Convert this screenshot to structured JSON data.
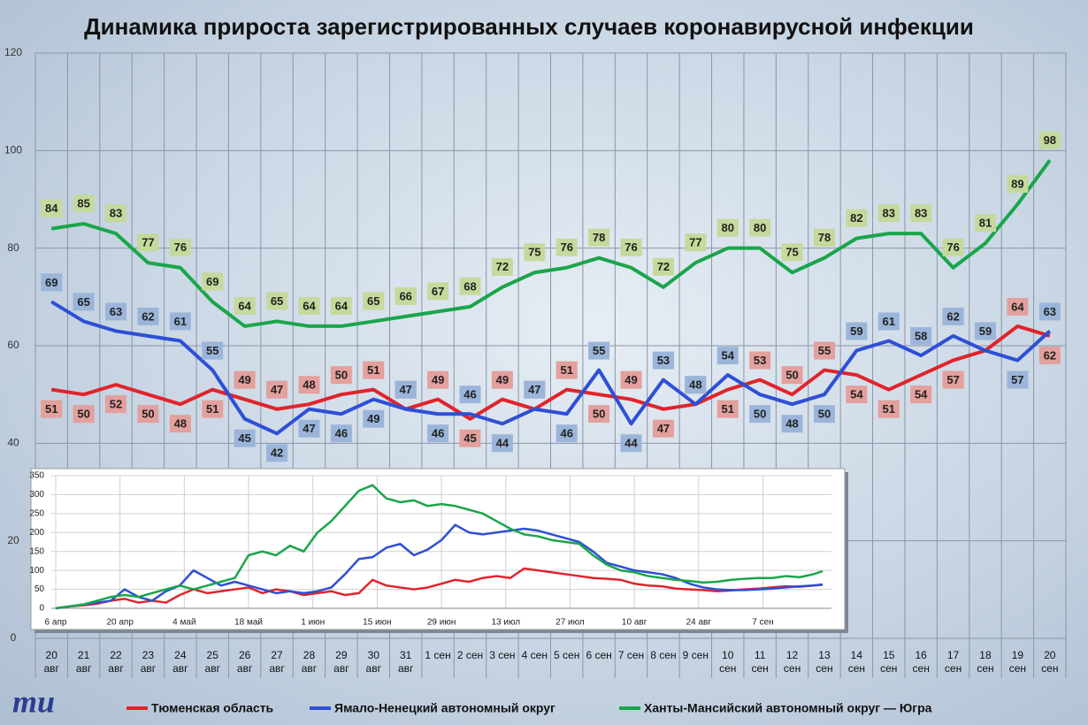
{
  "chart_data": [
    {
      "type": "line",
      "title": "Динамика прироста зарегистрированных случаев коронавирусной инфекции",
      "categories": [
        "20\nавг",
        "21\nавг",
        "22\nавг",
        "23\nавг",
        "24\nавг",
        "25\nавг",
        "26\nавг",
        "27\nавг",
        "28\nавг",
        "29\nавг",
        "30\nавг",
        "31\nавг",
        "1 сен",
        "2 сен",
        "3 сен",
        "4 сен",
        "5 сен",
        "6 сен",
        "7 сен",
        "8 сен",
        "9 сен",
        "10\nсен",
        "11\nсен",
        "12\nсен",
        "13\nсен",
        "14\nсен",
        "15\nсен",
        "16\nсен",
        "17\nсен",
        "18\nсен",
        "19\nсен",
        "20\nсен"
      ],
      "series": [
        {
          "name": "Тюменская область",
          "color": "#e0242b",
          "label_color": "#e3a09c",
          "values": [
            51,
            50,
            52,
            50,
            48,
            51,
            49,
            47,
            48,
            50,
            51,
            47,
            49,
            45,
            49,
            47,
            51,
            50,
            49,
            47,
            48,
            51,
            53,
            50,
            55,
            54,
            51,
            54,
            57,
            59,
            64,
            62
          ]
        },
        {
          "name": "Ямало-Ненецкий автономный округ",
          "color": "#2e4fd6",
          "label_color": "#9bb5da",
          "values": [
            69,
            65,
            63,
            62,
            61,
            55,
            45,
            42,
            47,
            46,
            49,
            47,
            46,
            46,
            44,
            47,
            46,
            55,
            44,
            53,
            48,
            54,
            50,
            48,
            50,
            59,
            61,
            58,
            62,
            59,
            57,
            63
          ]
        },
        {
          "name": "Ханты-Мансийский автономный округ — Югра",
          "color": "#1aa54a",
          "label_color": "#c5d99c",
          "values": [
            84,
            85,
            83,
            77,
            76,
            69,
            64,
            65,
            64,
            64,
            65,
            66,
            67,
            68,
            72,
            75,
            76,
            78,
            76,
            72,
            77,
            80,
            80,
            75,
            78,
            82,
            83,
            83,
            76,
            81,
            89,
            98
          ]
        }
      ],
      "ylim": [
        0,
        120
      ],
      "yticks": [
        0,
        20,
        40,
        60,
        80,
        100,
        120
      ],
      "grid": true
    },
    {
      "type": "line",
      "x": [
        0,
        3,
        6,
        9,
        12,
        15,
        18,
        21,
        24,
        27,
        30,
        33,
        36,
        39,
        42,
        45,
        48,
        51,
        54,
        57,
        60,
        63,
        66,
        69,
        72,
        75,
        78,
        81,
        84,
        87,
        90,
        93,
        96,
        99,
        102,
        105,
        108,
        111,
        114,
        117,
        120,
        123,
        126,
        129,
        132,
        135,
        138,
        141,
        144,
        147,
        150,
        153,
        156,
        159,
        162,
        165,
        167
      ],
      "series": [
        {
          "color": "#e0242b",
          "values": [
            0,
            5,
            8,
            12,
            20,
            25,
            15,
            20,
            15,
            35,
            50,
            40,
            45,
            50,
            55,
            40,
            50,
            45,
            35,
            40,
            45,
            35,
            40,
            75,
            60,
            55,
            50,
            55,
            65,
            75,
            70,
            80,
            85,
            80,
            105,
            100,
            95,
            90,
            85,
            80,
            78,
            75,
            65,
            60,
            58,
            52,
            50,
            48,
            45,
            47,
            50,
            52,
            55,
            58,
            57,
            60,
            62
          ]
        },
        {
          "color": "#2e4fd6",
          "values": [
            0,
            5,
            10,
            15,
            20,
            50,
            30,
            20,
            45,
            60,
            100,
            80,
            60,
            70,
            60,
            50,
            40,
            45,
            40,
            45,
            55,
            90,
            130,
            135,
            160,
            170,
            140,
            155,
            180,
            220,
            200,
            195,
            200,
            205,
            210,
            205,
            195,
            185,
            175,
            150,
            120,
            110,
            100,
            95,
            90,
            80,
            65,
            55,
            50,
            48,
            48,
            50,
            52,
            55,
            58,
            60,
            63
          ]
        },
        {
          "color": "#1aa54a",
          "values": [
            0,
            5,
            10,
            20,
            30,
            35,
            30,
            40,
            50,
            60,
            50,
            60,
            70,
            80,
            140,
            150,
            140,
            165,
            150,
            200,
            230,
            270,
            310,
            325,
            290,
            280,
            285,
            270,
            275,
            270,
            260,
            250,
            230,
            210,
            195,
            190,
            180,
            175,
            170,
            140,
            115,
            100,
            95,
            85,
            80,
            75,
            72,
            68,
            70,
            75,
            78,
            80,
            80,
            85,
            82,
            90,
            98
          ]
        }
      ],
      "xlim": [
        0,
        167
      ],
      "xticks": [
        {
          "value": 0,
          "label": "6 апр"
        },
        {
          "value": 14,
          "label": "20 апр"
        },
        {
          "value": 28,
          "label": "4 май"
        },
        {
          "value": 42,
          "label": "18 май"
        },
        {
          "value": 56,
          "label": "1 июн"
        },
        {
          "value": 70,
          "label": "15 июн"
        },
        {
          "value": 84,
          "label": "29 июн"
        },
        {
          "value": 98,
          "label": "13 июл"
        },
        {
          "value": 112,
          "label": "27 июл"
        },
        {
          "value": 126,
          "label": "10 авг"
        },
        {
          "value": 140,
          "label": "24 авг"
        },
        {
          "value": 154,
          "label": "7 сен"
        }
      ],
      "ylim": [
        0,
        350
      ],
      "yticks": [
        0,
        50,
        100,
        150,
        200,
        250,
        300,
        350
      ],
      "grid": true
    }
  ],
  "logo": "mu"
}
